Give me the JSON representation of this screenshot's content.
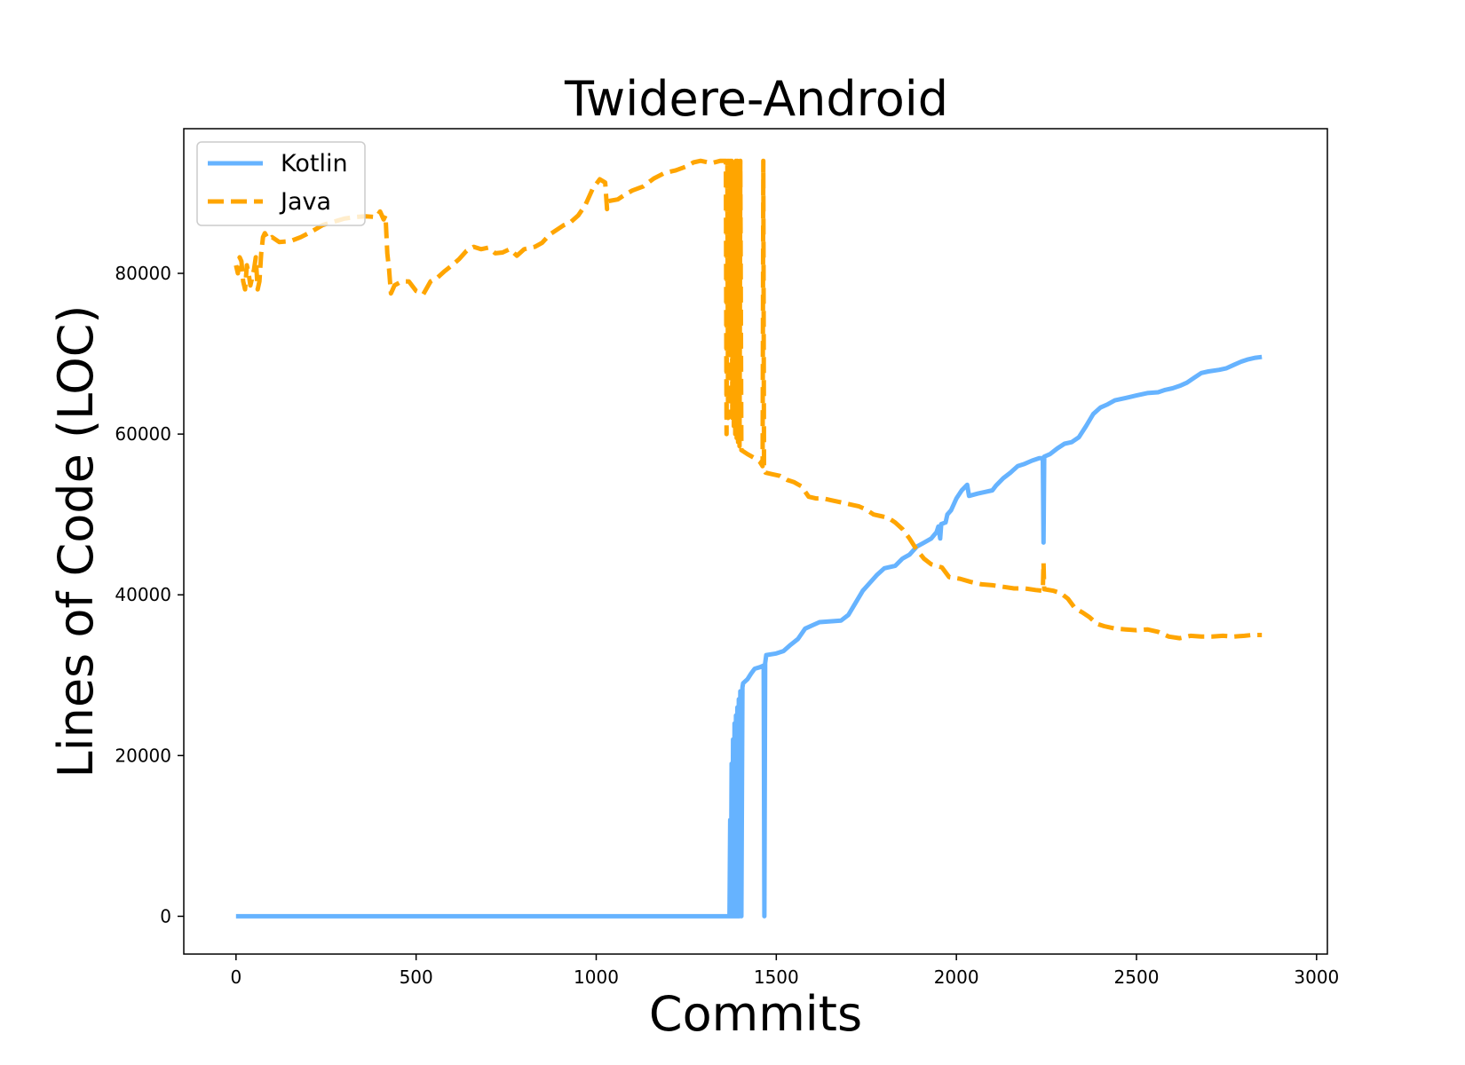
{
  "chart_data": {
    "type": "line",
    "title": "Twidere-Android",
    "xlabel": "Commits",
    "ylabel": "Lines of Code (LOC)",
    "xlim": [
      -145,
      3030
    ],
    "ylim": [
      -4700,
      98000
    ],
    "xticks": [
      0,
      500,
      1000,
      1500,
      2000,
      2500,
      3000
    ],
    "yticks": [
      0,
      20000,
      40000,
      60000,
      80000
    ],
    "xtick_labels": [
      "0",
      "500",
      "1000",
      "1500",
      "2000",
      "2500",
      "3000"
    ],
    "ytick_labels": [
      "0",
      "20000",
      "40000",
      "60000",
      "80000"
    ],
    "grid": false,
    "legend_position": "top-left",
    "legend": {
      "kotlin": "Kotlin",
      "java": "Java"
    },
    "colors": {
      "kotlin": "#66b3ff",
      "java": "#ffa500"
    },
    "series": [
      {
        "name": "Kotlin",
        "style": "solid",
        "points": [
          [
            0,
            0
          ],
          [
            1370,
            0
          ],
          [
            1372,
            12000
          ],
          [
            1374,
            0
          ],
          [
            1376,
            19000
          ],
          [
            1378,
            0
          ],
          [
            1380,
            22000
          ],
          [
            1382,
            0
          ],
          [
            1384,
            24000
          ],
          [
            1386,
            0
          ],
          [
            1388,
            25000
          ],
          [
            1390,
            0
          ],
          [
            1392,
            26000
          ],
          [
            1394,
            0
          ],
          [
            1396,
            27000
          ],
          [
            1398,
            0
          ],
          [
            1400,
            28000
          ],
          [
            1403,
            0
          ],
          [
            1406,
            28500
          ],
          [
            1408,
            29000
          ],
          [
            1420,
            29500
          ],
          [
            1430,
            30200
          ],
          [
            1440,
            30800
          ],
          [
            1455,
            31000
          ],
          [
            1465,
            31200
          ],
          [
            1467,
            0
          ],
          [
            1469,
            31500
          ],
          [
            1472,
            32500
          ],
          [
            1500,
            32700
          ],
          [
            1520,
            33000
          ],
          [
            1540,
            33800
          ],
          [
            1560,
            34500
          ],
          [
            1580,
            35800
          ],
          [
            1600,
            36200
          ],
          [
            1620,
            36600
          ],
          [
            1650,
            36700
          ],
          [
            1680,
            36800
          ],
          [
            1700,
            37500
          ],
          [
            1720,
            39000
          ],
          [
            1740,
            40500
          ],
          [
            1760,
            41500
          ],
          [
            1780,
            42500
          ],
          [
            1800,
            43300
          ],
          [
            1830,
            43600
          ],
          [
            1850,
            44500
          ],
          [
            1870,
            45000
          ],
          [
            1890,
            46000
          ],
          [
            1910,
            46500
          ],
          [
            1930,
            47000
          ],
          [
            1945,
            47800
          ],
          [
            1950,
            48500
          ],
          [
            1955,
            47000
          ],
          [
            1958,
            48800
          ],
          [
            1970,
            49000
          ],
          [
            1975,
            50000
          ],
          [
            1985,
            50500
          ],
          [
            2000,
            52000
          ],
          [
            2015,
            53000
          ],
          [
            2030,
            53700
          ],
          [
            2035,
            52300
          ],
          [
            2060,
            52600
          ],
          [
            2080,
            52800
          ],
          [
            2100,
            53000
          ],
          [
            2110,
            53600
          ],
          [
            2130,
            54500
          ],
          [
            2150,
            55200
          ],
          [
            2170,
            56000
          ],
          [
            2190,
            56300
          ],
          [
            2210,
            56700
          ],
          [
            2230,
            57000
          ],
          [
            2240,
            57000
          ],
          [
            2242,
            46500
          ],
          [
            2244,
            57200
          ],
          [
            2260,
            57500
          ],
          [
            2280,
            58200
          ],
          [
            2300,
            58800
          ],
          [
            2320,
            59000
          ],
          [
            2340,
            59600
          ],
          [
            2360,
            61000
          ],
          [
            2380,
            62500
          ],
          [
            2400,
            63300
          ],
          [
            2420,
            63700
          ],
          [
            2440,
            64200
          ],
          [
            2470,
            64500
          ],
          [
            2500,
            64800
          ],
          [
            2530,
            65100
          ],
          [
            2560,
            65200
          ],
          [
            2580,
            65500
          ],
          [
            2600,
            65700
          ],
          [
            2620,
            66000
          ],
          [
            2640,
            66400
          ],
          [
            2660,
            67000
          ],
          [
            2680,
            67600
          ],
          [
            2700,
            67800
          ],
          [
            2730,
            68000
          ],
          [
            2750,
            68200
          ],
          [
            2770,
            68600
          ],
          [
            2790,
            69000
          ],
          [
            2810,
            69300
          ],
          [
            2830,
            69500
          ],
          [
            2848,
            69600
          ]
        ]
      },
      {
        "name": "Java",
        "style": "dashed",
        "points": [
          [
            0,
            81000
          ],
          [
            5,
            80000
          ],
          [
            10,
            82000
          ],
          [
            15,
            81500
          ],
          [
            20,
            79000
          ],
          [
            25,
            78000
          ],
          [
            30,
            81000
          ],
          [
            35,
            80000
          ],
          [
            40,
            78500
          ],
          [
            45,
            79500
          ],
          [
            50,
            80500
          ],
          [
            55,
            82000
          ],
          [
            60,
            78000
          ],
          [
            65,
            79000
          ],
          [
            70,
            82500
          ],
          [
            75,
            84500
          ],
          [
            80,
            85000
          ],
          [
            90,
            84200
          ],
          [
            100,
            84500
          ],
          [
            120,
            83900
          ],
          [
            150,
            84000
          ],
          [
            180,
            84500
          ],
          [
            210,
            85200
          ],
          [
            240,
            86000
          ],
          [
            270,
            86400
          ],
          [
            300,
            86800
          ],
          [
            330,
            87000
          ],
          [
            360,
            87100
          ],
          [
            390,
            87000
          ],
          [
            400,
            87700
          ],
          [
            410,
            86700
          ],
          [
            415,
            87200
          ],
          [
            420,
            82500
          ],
          [
            425,
            80500
          ],
          [
            430,
            77500
          ],
          [
            440,
            78500
          ],
          [
            460,
            79000
          ],
          [
            480,
            79000
          ],
          [
            500,
            77800
          ],
          [
            520,
            77400
          ],
          [
            540,
            79000
          ],
          [
            560,
            79500
          ],
          [
            580,
            80300
          ],
          [
            600,
            81000
          ],
          [
            620,
            81800
          ],
          [
            640,
            82800
          ],
          [
            660,
            83300
          ],
          [
            680,
            83000
          ],
          [
            700,
            83200
          ],
          [
            720,
            82500
          ],
          [
            740,
            82600
          ],
          [
            760,
            83000
          ],
          [
            780,
            82200
          ],
          [
            800,
            83000
          ],
          [
            830,
            83300
          ],
          [
            850,
            83800
          ],
          [
            870,
            84800
          ],
          [
            890,
            85400
          ],
          [
            910,
            86000
          ],
          [
            930,
            86400
          ],
          [
            950,
            87200
          ],
          [
            970,
            88500
          ],
          [
            990,
            90500
          ],
          [
            1010,
            91700
          ],
          [
            1025,
            91300
          ],
          [
            1030,
            88000
          ],
          [
            1035,
            89000
          ],
          [
            1060,
            89200
          ],
          [
            1080,
            89800
          ],
          [
            1100,
            90300
          ],
          [
            1130,
            90800
          ],
          [
            1160,
            91800
          ],
          [
            1190,
            92500
          ],
          [
            1220,
            92800
          ],
          [
            1250,
            93300
          ],
          [
            1270,
            93800
          ],
          [
            1290,
            94000
          ],
          [
            1320,
            93700
          ],
          [
            1345,
            94000
          ],
          [
            1360,
            94000
          ],
          [
            1362,
            60000
          ],
          [
            1364,
            94000
          ],
          [
            1366,
            62000
          ],
          [
            1368,
            94000
          ],
          [
            1370,
            70000
          ],
          [
            1372,
            94000
          ],
          [
            1374,
            65000
          ],
          [
            1376,
            94000
          ],
          [
            1378,
            62000
          ],
          [
            1380,
            94000
          ],
          [
            1382,
            61000
          ],
          [
            1384,
            94000
          ],
          [
            1386,
            60000
          ],
          [
            1388,
            94000
          ],
          [
            1390,
            59500
          ],
          [
            1392,
            94000
          ],
          [
            1394,
            59000
          ],
          [
            1396,
            94000
          ],
          [
            1398,
            58500
          ],
          [
            1400,
            94000
          ],
          [
            1403,
            58000
          ],
          [
            1420,
            57500
          ],
          [
            1440,
            57000
          ],
          [
            1455,
            56500
          ],
          [
            1462,
            56000
          ],
          [
            1464,
            94000
          ],
          [
            1466,
            55500
          ],
          [
            1470,
            55200
          ],
          [
            1490,
            55000
          ],
          [
            1510,
            54800
          ],
          [
            1530,
            54300
          ],
          [
            1550,
            54000
          ],
          [
            1570,
            53500
          ],
          [
            1590,
            52200
          ],
          [
            1610,
            52000
          ],
          [
            1630,
            52000
          ],
          [
            1650,
            51800
          ],
          [
            1670,
            51600
          ],
          [
            1690,
            51400
          ],
          [
            1710,
            51200
          ],
          [
            1730,
            51000
          ],
          [
            1750,
            50600
          ],
          [
            1770,
            50000
          ],
          [
            1790,
            49800
          ],
          [
            1810,
            49600
          ],
          [
            1830,
            49000
          ],
          [
            1850,
            48200
          ],
          [
            1870,
            47000
          ],
          [
            1890,
            45600
          ],
          [
            1910,
            44500
          ],
          [
            1930,
            43800
          ],
          [
            1960,
            43400
          ],
          [
            1980,
            42200
          ],
          [
            2010,
            42000
          ],
          [
            2040,
            41600
          ],
          [
            2070,
            41300
          ],
          [
            2100,
            41200
          ],
          [
            2130,
            41000
          ],
          [
            2160,
            40800
          ],
          [
            2190,
            40800
          ],
          [
            2220,
            40600
          ],
          [
            2240,
            40500
          ],
          [
            2242,
            44000
          ],
          [
            2244,
            40700
          ],
          [
            2270,
            40500
          ],
          [
            2290,
            40200
          ],
          [
            2310,
            39500
          ],
          [
            2330,
            38300
          ],
          [
            2350,
            37800
          ],
          [
            2370,
            37200
          ],
          [
            2390,
            36400
          ],
          [
            2410,
            36100
          ],
          [
            2440,
            35800
          ],
          [
            2470,
            35700
          ],
          [
            2500,
            35600
          ],
          [
            2530,
            35700
          ],
          [
            2560,
            35400
          ],
          [
            2590,
            34800
          ],
          [
            2620,
            34600
          ],
          [
            2650,
            34900
          ],
          [
            2680,
            34800
          ],
          [
            2710,
            34800
          ],
          [
            2740,
            34900
          ],
          [
            2770,
            34800
          ],
          [
            2800,
            34900
          ],
          [
            2820,
            35000
          ],
          [
            2848,
            35000
          ]
        ]
      }
    ]
  }
}
